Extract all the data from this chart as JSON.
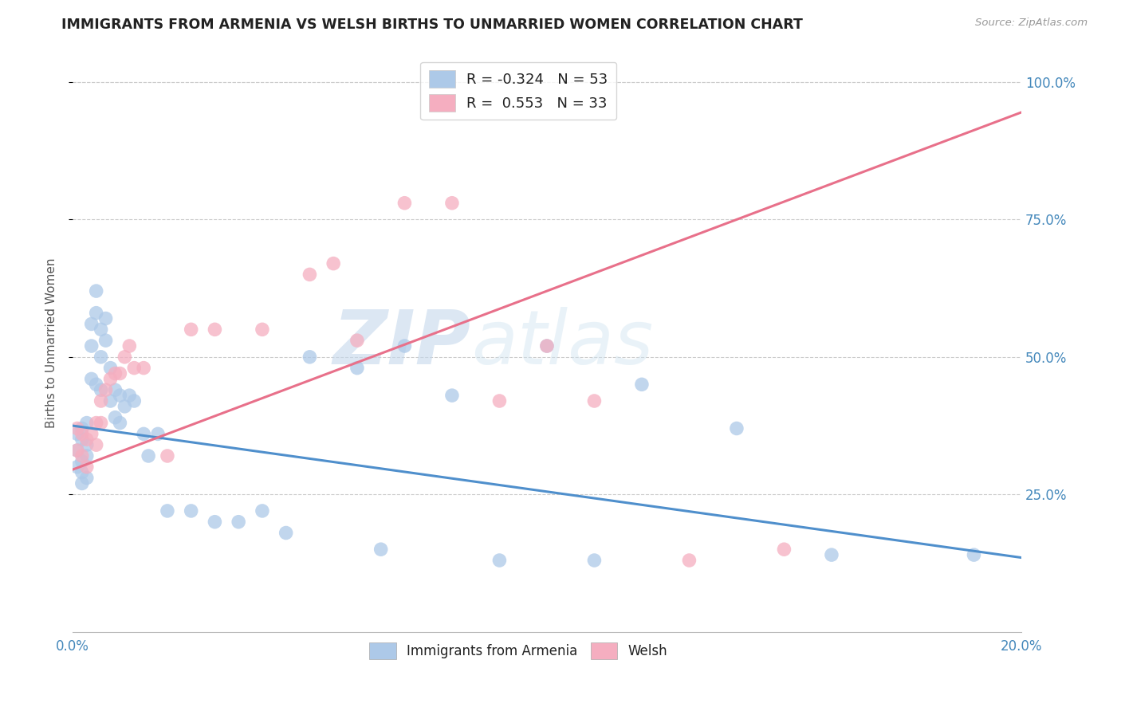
{
  "title": "IMMIGRANTS FROM ARMENIA VS WELSH BIRTHS TO UNMARRIED WOMEN CORRELATION CHART",
  "source": "Source: ZipAtlas.com",
  "ylabel": "Births to Unmarried Women",
  "xmin": 0.0,
  "xmax": 0.2,
  "ymin": 0.0,
  "ymax": 1.05,
  "ytick_positions": [
    0.25,
    0.5,
    0.75,
    1.0
  ],
  "ytick_labels": [
    "25.0%",
    "50.0%",
    "75.0%",
    "100.0%"
  ],
  "xtick_positions": [
    0.0,
    0.04,
    0.08,
    0.12,
    0.16,
    0.2
  ],
  "xtick_labels": [
    "0.0%",
    "",
    "",
    "",
    "",
    "20.0%"
  ],
  "legend_labels": [
    "Immigrants from Armenia",
    "Welsh"
  ],
  "blue_R": "-0.324",
  "blue_N": "53",
  "pink_R": "0.553",
  "pink_N": "33",
  "blue_color": "#adc9e8",
  "pink_color": "#f5aec0",
  "blue_line_color": "#4f8fcc",
  "pink_line_color": "#e8708a",
  "watermark_zip": "ZIP",
  "watermark_atlas": "atlas",
  "blue_scatter_x": [
    0.001,
    0.001,
    0.001,
    0.002,
    0.002,
    0.002,
    0.002,
    0.002,
    0.003,
    0.003,
    0.003,
    0.003,
    0.004,
    0.004,
    0.004,
    0.005,
    0.005,
    0.005,
    0.006,
    0.006,
    0.006,
    0.007,
    0.007,
    0.008,
    0.008,
    0.009,
    0.009,
    0.01,
    0.01,
    0.011,
    0.012,
    0.013,
    0.015,
    0.016,
    0.018,
    0.02,
    0.025,
    0.03,
    0.035,
    0.04,
    0.045,
    0.05,
    0.06,
    0.065,
    0.07,
    0.08,
    0.09,
    0.1,
    0.11,
    0.12,
    0.14,
    0.16,
    0.19
  ],
  "blue_scatter_y": [
    0.36,
    0.33,
    0.3,
    0.37,
    0.35,
    0.31,
    0.29,
    0.27,
    0.38,
    0.34,
    0.32,
    0.28,
    0.56,
    0.52,
    0.46,
    0.62,
    0.58,
    0.45,
    0.55,
    0.5,
    0.44,
    0.57,
    0.53,
    0.48,
    0.42,
    0.44,
    0.39,
    0.43,
    0.38,
    0.41,
    0.43,
    0.42,
    0.36,
    0.32,
    0.36,
    0.22,
    0.22,
    0.2,
    0.2,
    0.22,
    0.18,
    0.5,
    0.48,
    0.15,
    0.52,
    0.43,
    0.13,
    0.52,
    0.13,
    0.45,
    0.37,
    0.14,
    0.14
  ],
  "pink_scatter_x": [
    0.001,
    0.001,
    0.002,
    0.002,
    0.003,
    0.003,
    0.004,
    0.005,
    0.005,
    0.006,
    0.006,
    0.007,
    0.008,
    0.009,
    0.01,
    0.011,
    0.012,
    0.013,
    0.015,
    0.02,
    0.025,
    0.03,
    0.04,
    0.05,
    0.055,
    0.06,
    0.07,
    0.08,
    0.09,
    0.1,
    0.11,
    0.13,
    0.15
  ],
  "pink_scatter_y": [
    0.37,
    0.33,
    0.36,
    0.32,
    0.35,
    0.3,
    0.36,
    0.38,
    0.34,
    0.42,
    0.38,
    0.44,
    0.46,
    0.47,
    0.47,
    0.5,
    0.52,
    0.48,
    0.48,
    0.32,
    0.55,
    0.55,
    0.55,
    0.65,
    0.67,
    0.53,
    0.78,
    0.78,
    0.42,
    0.52,
    0.42,
    0.13,
    0.15
  ],
  "blue_trend_x": [
    0.0,
    0.2
  ],
  "blue_trend_y": [
    0.375,
    0.135
  ],
  "pink_trend_x": [
    0.0,
    0.2
  ],
  "pink_trend_y": [
    0.295,
    0.945
  ]
}
